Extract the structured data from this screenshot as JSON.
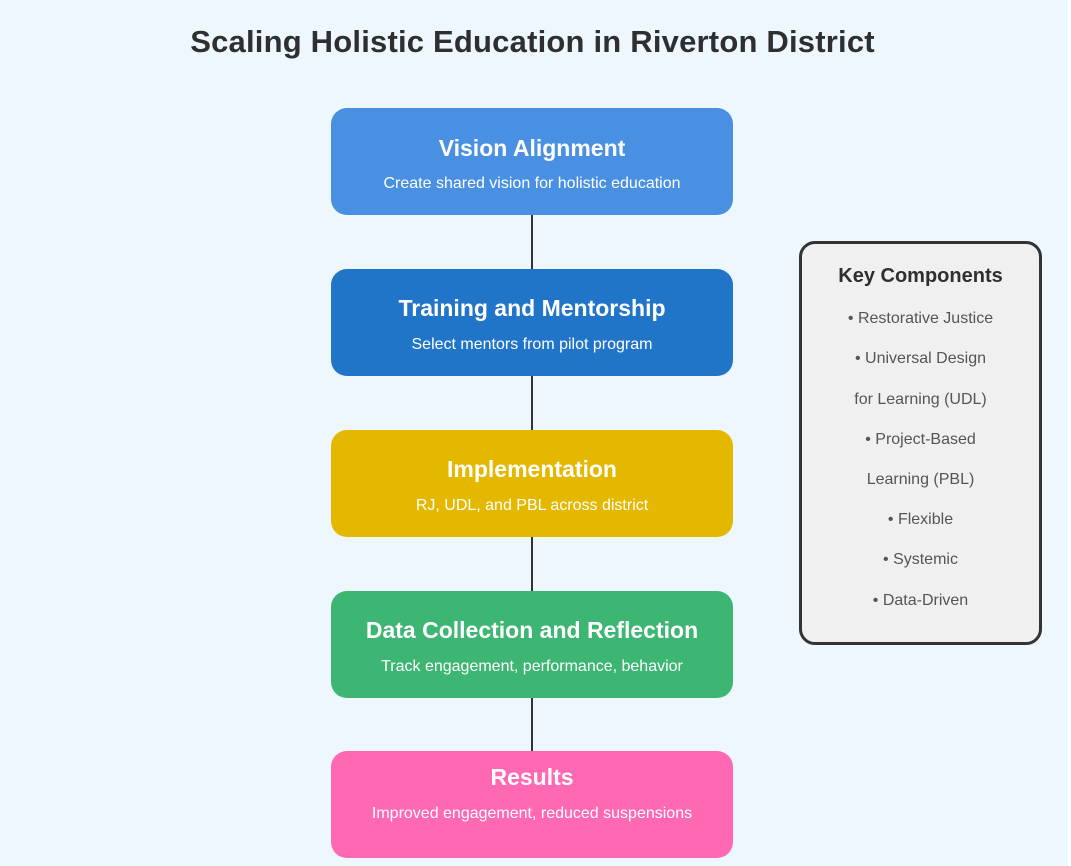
{
  "title": "Scaling Holistic Education in Riverton District",
  "colors": {
    "background": "#eef7fd",
    "vision": "#4a90e2",
    "training": "#2175c9",
    "implementation": "#e5b800",
    "data": "#3cb672",
    "results": "#ff69b4",
    "connector": "#333333",
    "panel_bg": "#f0f0f0"
  },
  "steps": [
    {
      "title": "Vision Alignment",
      "description": "Create shared vision for holistic education"
    },
    {
      "title": "Training and Mentorship",
      "description": "Select mentors from pilot program"
    },
    {
      "title": "Implementation",
      "description": "RJ, UDL, and PBL across district"
    },
    {
      "title": "Data Collection and Reflection",
      "description": "Track engagement, performance, behavior"
    },
    {
      "title": "Results",
      "description": "Improved engagement, reduced suspensions"
    }
  ],
  "key_components": {
    "title": "Key Components",
    "lines": [
      "• Restorative Justice",
      "• Universal Design",
      "for Learning (UDL)",
      "• Project-Based",
      "Learning (PBL)",
      "• Flexible",
      "• Systemic",
      "• Data-Driven"
    ]
  }
}
